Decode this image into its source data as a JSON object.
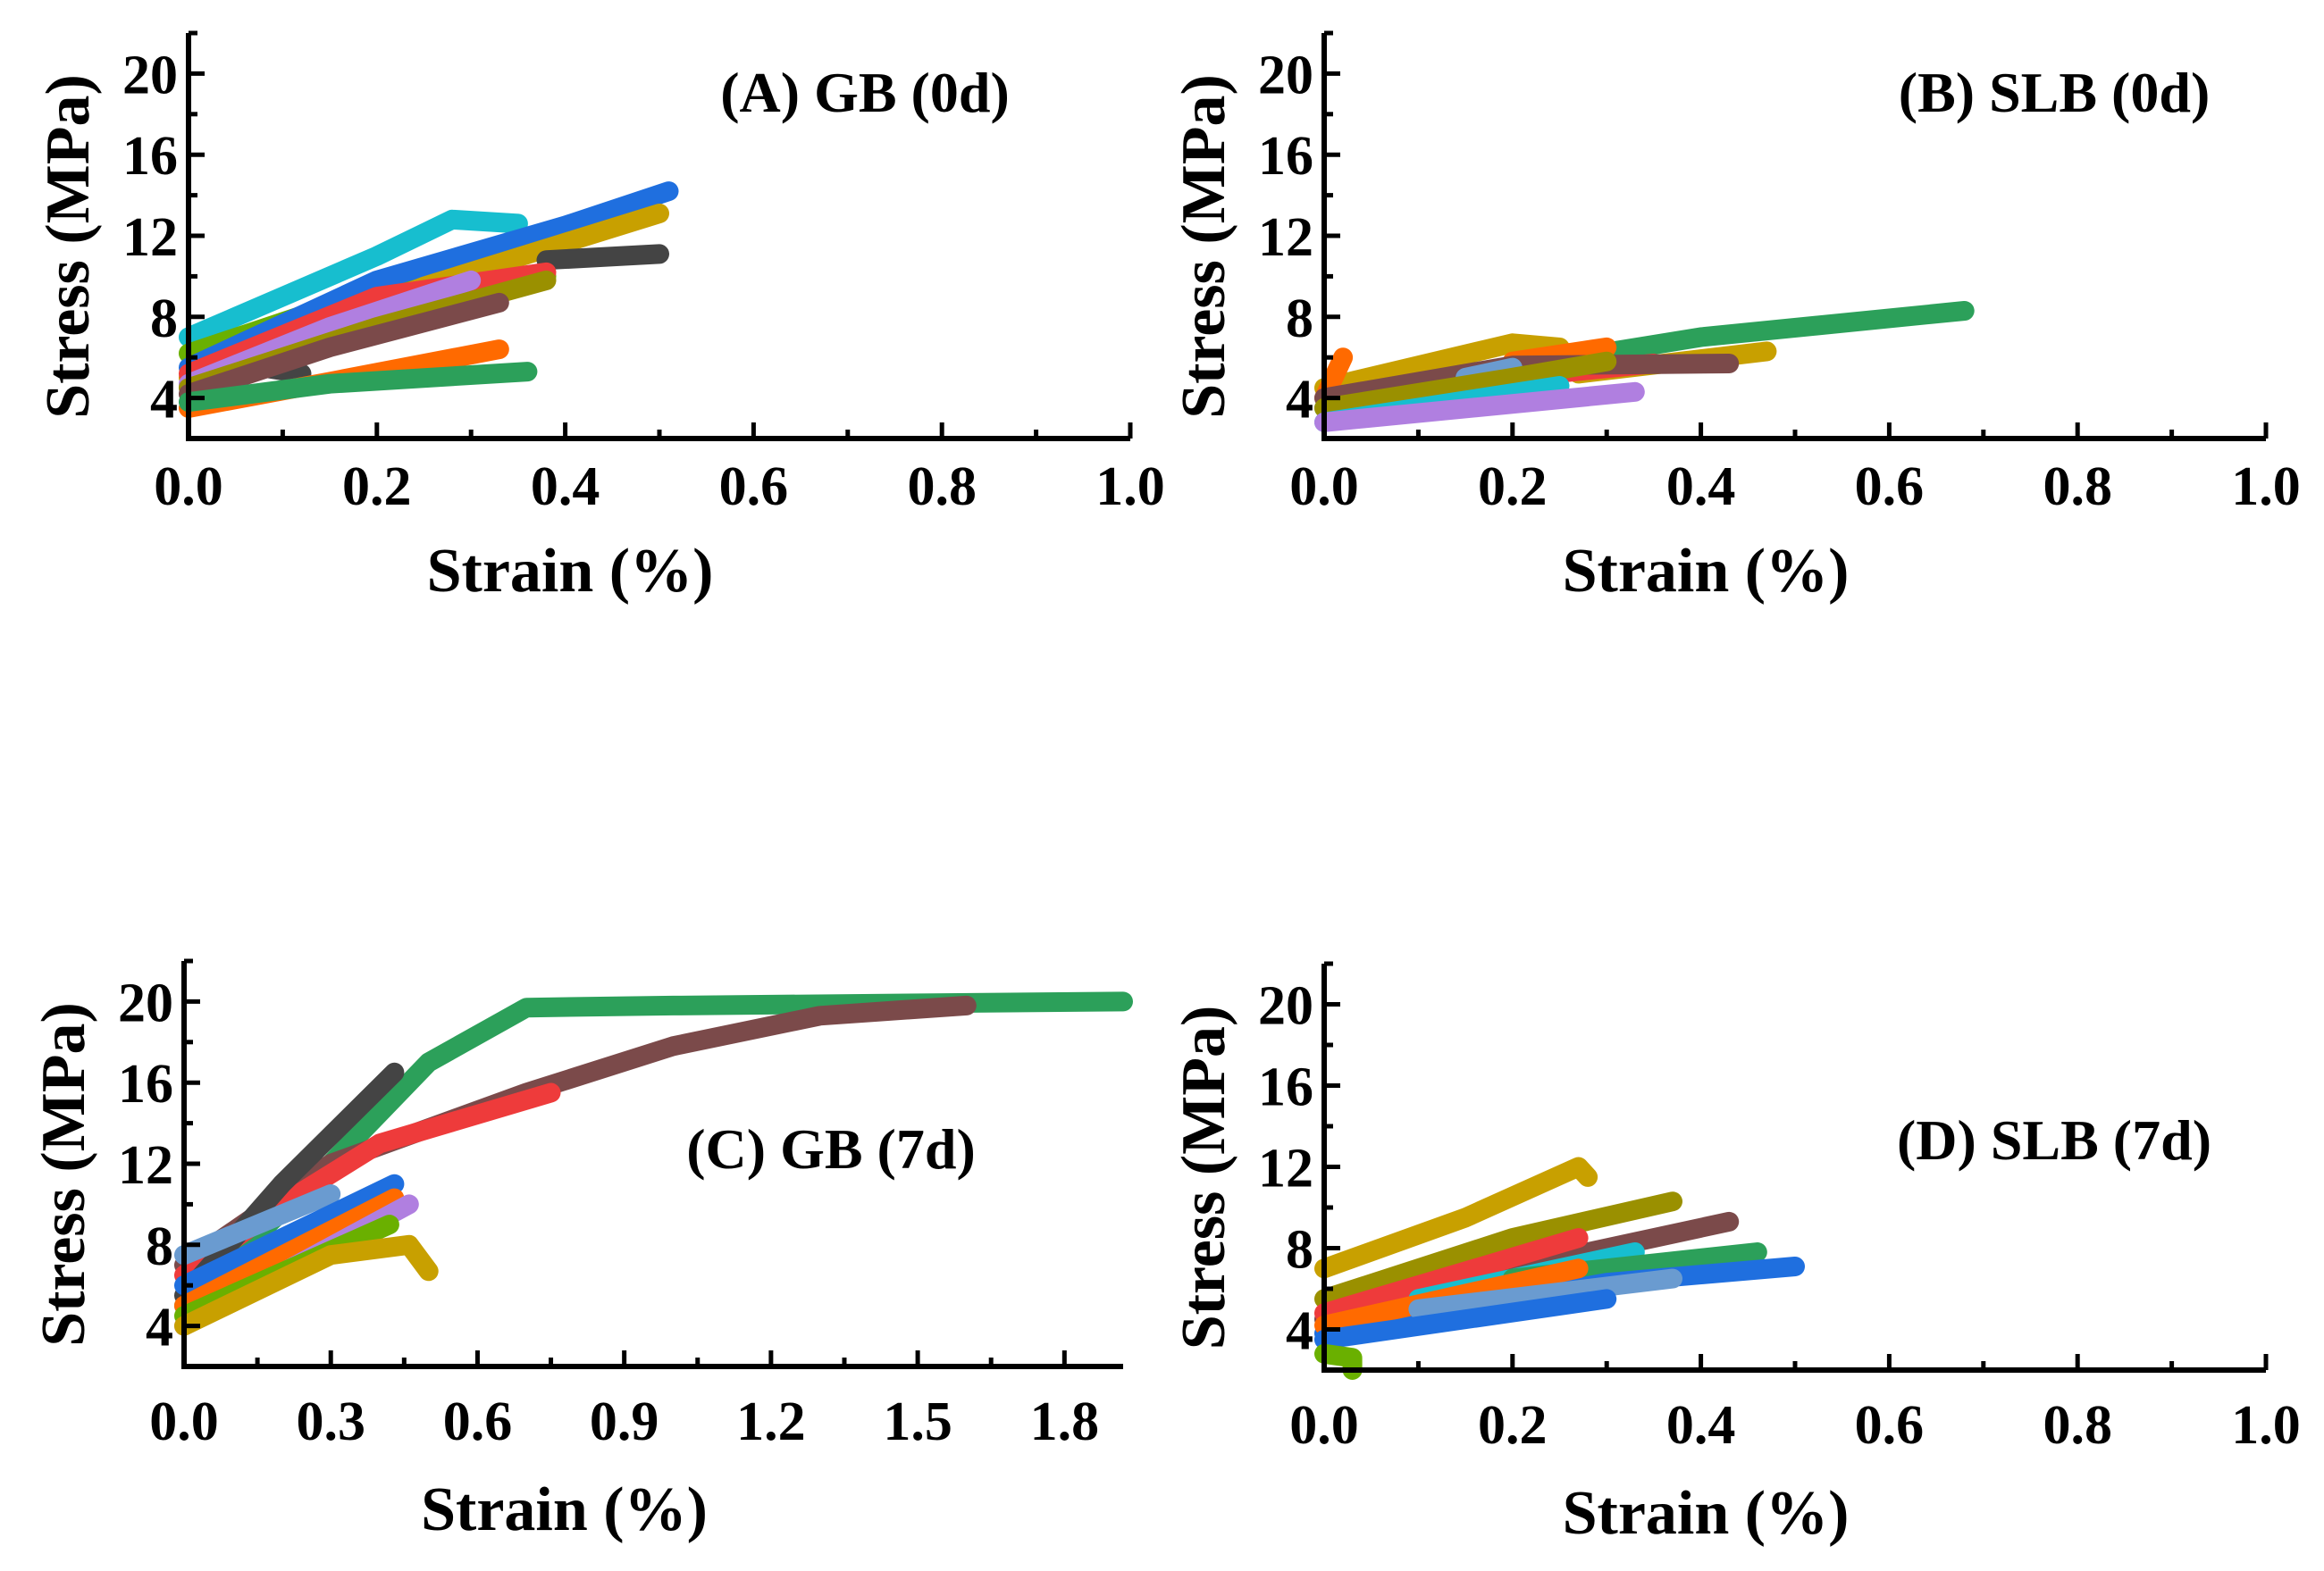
{
  "chart_data": [
    {
      "type": "line",
      "title": "(A) GB (0d)",
      "xlabel": "Strain (%)",
      "ylabel": "Stress (MPa)",
      "xlim": [
        0,
        1.0
      ],
      "ylim": [
        2,
        22
      ],
      "xticks": [
        "0.0",
        "0.2",
        "0.4",
        "0.6",
        "0.8",
        "1.0"
      ],
      "xtick_values": [
        0,
        0.2,
        0.4,
        0.6,
        0.8,
        1.0
      ],
      "yticks": [
        "4",
        "8",
        "12",
        "16",
        "20"
      ],
      "ytick_values": [
        4,
        8,
        12,
        16,
        20
      ],
      "grid": false,
      "series": [
        {
          "color": "#17becf",
          "points": [
            [
              0,
              7
            ],
            [
              0.1,
              9
            ],
            [
              0.2,
              11
            ],
            [
              0.28,
              12.8
            ],
            [
              0.35,
              12.6
            ]
          ]
        },
        {
          "color": "#6ab000",
          "points": [
            [
              0,
              6.2
            ],
            [
              0.2,
              9.3
            ],
            [
              0.38,
              10
            ]
          ]
        },
        {
          "color": "#1f6fdf",
          "points": [
            [
              0,
              5.5
            ],
            [
              0.2,
              9.8
            ],
            [
              0.4,
              12.5
            ],
            [
              0.51,
              14.2
            ]
          ]
        },
        {
          "color": "#c8a000",
          "points": [
            [
              0,
              5
            ],
            [
              0.25,
              9.5
            ],
            [
              0.5,
              13.1
            ]
          ]
        },
        {
          "color": "#444444",
          "points": [
            [
              0.38,
              10.8
            ],
            [
              0.5,
              11.1
            ]
          ]
        },
        {
          "color": "#444444",
          "points": [
            [
              0.08,
              5.5
            ],
            [
              0.12,
              5.2
            ]
          ]
        },
        {
          "color": "#ee3b3b",
          "points": [
            [
              0,
              5.2
            ],
            [
              0.2,
              9
            ],
            [
              0.38,
              10.2
            ]
          ]
        },
        {
          "color": "#b07fe0",
          "points": [
            [
              0,
              4.7
            ],
            [
              0.15,
              7.5
            ],
            [
              0.3,
              9.8
            ]
          ]
        },
        {
          "color": "#9a9000",
          "points": [
            [
              0,
              4.5
            ],
            [
              0.2,
              7.5
            ],
            [
              0.38,
              9.8
            ]
          ]
        },
        {
          "color": "#7b4a4a",
          "points": [
            [
              0,
              4.2
            ],
            [
              0.15,
              6.5
            ],
            [
              0.33,
              8.7
            ]
          ]
        },
        {
          "color": "#ff6a00",
          "points": [
            [
              0,
              3.5
            ],
            [
              0.15,
              4.8
            ],
            [
              0.33,
              6.4
            ]
          ]
        },
        {
          "color": "#2ca05a",
          "points": [
            [
              0,
              3.8
            ],
            [
              0.15,
              4.7
            ],
            [
              0.36,
              5.3
            ]
          ]
        }
      ]
    },
    {
      "type": "line",
      "title": "(B) SLB (0d)",
      "xlabel": "Strain (%)",
      "ylabel": "Stress (MPa)",
      "xlim": [
        0,
        1.0
      ],
      "ylim": [
        2,
        22
      ],
      "xticks": [
        "0.0",
        "0.2",
        "0.4",
        "0.6",
        "0.8",
        "1.0"
      ],
      "xtick_values": [
        0,
        0.2,
        0.4,
        0.6,
        0.8,
        1.0
      ],
      "yticks": [
        "4",
        "8",
        "12",
        "16",
        "20"
      ],
      "ytick_values": [
        4,
        8,
        12,
        16,
        20
      ],
      "grid": false,
      "series": [
        {
          "color": "#2ca05a",
          "points": [
            [
              0,
              3.5
            ],
            [
              0.2,
              5.5
            ],
            [
              0.4,
              7
            ],
            [
              0.68,
              8.3
            ]
          ]
        },
        {
          "color": "#c8a000",
          "points": [
            [
              0,
              4.5
            ],
            [
              0.2,
              6.7
            ],
            [
              0.25,
              6.5
            ],
            [
              0.27,
              5.2
            ],
            [
              0.47,
              6.3
            ]
          ]
        },
        {
          "color": "#ff6a00",
          "points": [
            [
              0,
              4
            ],
            [
              0.02,
              6
            ]
          ]
        },
        {
          "color": "#ff6a00",
          "points": [
            [
              0.2,
              5.8
            ],
            [
              0.3,
              6.5
            ]
          ]
        },
        {
          "color": "#ee3b3b",
          "points": [
            [
              0.2,
              5
            ],
            [
              0.35,
              5.7
            ]
          ]
        },
        {
          "color": "#7b4a4a",
          "points": [
            [
              0,
              4
            ],
            [
              0.2,
              5.6
            ],
            [
              0.43,
              5.7
            ]
          ]
        },
        {
          "color": "#6a9bd0",
          "points": [
            [
              0.15,
              5
            ],
            [
              0.2,
              5.5
            ]
          ]
        },
        {
          "color": "#9a9000",
          "points": [
            [
              0,
              3.5
            ],
            [
              0.2,
              5
            ],
            [
              0.3,
              5.8
            ]
          ]
        },
        {
          "color": "#17becf",
          "points": [
            [
              0,
              2.8
            ],
            [
              0.25,
              4.6
            ]
          ]
        },
        {
          "color": "#b07fe0",
          "points": [
            [
              0,
              2.8
            ],
            [
              0.33,
              4.3
            ]
          ]
        }
      ]
    },
    {
      "type": "line",
      "title": "(C) GB (7d)",
      "xlabel": "Strain (%)",
      "ylabel": "Stress (MPa)",
      "xlim": [
        0,
        1.92
      ],
      "ylim": [
        2,
        22
      ],
      "xticks": [
        "0.0",
        "0.3",
        "0.6",
        "0.9",
        "1.2",
        "1.5",
        "1.8"
      ],
      "xtick_values": [
        0,
        0.3,
        0.6,
        0.9,
        1.2,
        1.5,
        1.8
      ],
      "yticks": [
        "4",
        "8",
        "12",
        "16",
        "20"
      ],
      "ytick_values": [
        4,
        8,
        12,
        16,
        20
      ],
      "grid": false,
      "series": [
        {
          "color": "#2ca05a",
          "points": [
            [
              0,
              5
            ],
            [
              0.3,
              12
            ],
            [
              0.5,
              17
            ],
            [
              0.7,
              19.7
            ],
            [
              1.0,
              19.8
            ],
            [
              1.92,
              20
            ]
          ]
        },
        {
          "color": "#7b4a4a",
          "points": [
            [
              0,
              7
            ],
            [
              0.3,
              12
            ],
            [
              0.7,
              15.5
            ],
            [
              1.0,
              17.8
            ],
            [
              1.3,
              19.3
            ],
            [
              1.6,
              19.8
            ]
          ]
        },
        {
          "color": "#ee3b3b",
          "points": [
            [
              0,
              6.5
            ],
            [
              0.2,
              10
            ],
            [
              0.4,
              13
            ],
            [
              0.75,
              15.5
            ]
          ]
        },
        {
          "color": "#444444",
          "points": [
            [
              0,
              5.5
            ],
            [
              0.2,
              11
            ],
            [
              0.43,
              16.5
            ]
          ]
        },
        {
          "color": "#6a9bd0",
          "points": [
            [
              0,
              7.5
            ],
            [
              0.3,
              10.5
            ]
          ]
        },
        {
          "color": "#1f6fdf",
          "points": [
            [
              0,
              6
            ],
            [
              0.43,
              11
            ]
          ]
        },
        {
          "color": "#ff6a00",
          "points": [
            [
              0,
              5
            ],
            [
              0.43,
              10.3
            ]
          ]
        },
        {
          "color": "#b07fe0",
          "points": [
            [
              0,
              4
            ],
            [
              0.46,
              10
            ]
          ]
        },
        {
          "color": "#6ab000",
          "points": [
            [
              0,
              4.5
            ],
            [
              0.42,
              9
            ]
          ]
        },
        {
          "color": "#c8a000",
          "points": [
            [
              0,
              4
            ],
            [
              0.3,
              7.5
            ],
            [
              0.46,
              8
            ],
            [
              0.5,
              6.7
            ]
          ]
        }
      ]
    },
    {
      "type": "line",
      "title": "(D) SLB (7d)",
      "xlabel": "Strain (%)",
      "ylabel": "Stress (MPa)",
      "xlim": [
        0,
        1.0
      ],
      "ylim": [
        2,
        22
      ],
      "xticks": [
        "0.0",
        "0.2",
        "0.4",
        "0.6",
        "0.8",
        "1.0"
      ],
      "xtick_values": [
        0,
        0.2,
        0.4,
        0.6,
        0.8,
        1.0
      ],
      "yticks": [
        "4",
        "8",
        "12",
        "16",
        "20"
      ],
      "ytick_values": [
        4,
        8,
        12,
        16,
        20
      ],
      "grid": false,
      "series": [
        {
          "color": "#c8a000",
          "points": [
            [
              0,
              7
            ],
            [
              0.15,
              9.5
            ],
            [
              0.27,
              12
            ],
            [
              0.28,
              11.5
            ]
          ]
        },
        {
          "color": "#9a9000",
          "points": [
            [
              0,
              5.5
            ],
            [
              0.2,
              8.5
            ],
            [
              0.37,
              10.3
            ]
          ]
        },
        {
          "color": "#7b4a4a",
          "points": [
            [
              0,
              4.5
            ],
            [
              0.2,
              7
            ],
            [
              0.43,
              9.3
            ]
          ]
        },
        {
          "color": "#ee3b3b",
          "points": [
            [
              0,
              4.8
            ],
            [
              0.27,
              8.5
            ]
          ]
        },
        {
          "color": "#17becf",
          "points": [
            [
              0.1,
              5.5
            ],
            [
              0.33,
              7.8
            ]
          ]
        },
        {
          "color": "#2ca05a",
          "points": [
            [
              0.2,
              6.5
            ],
            [
              0.46,
              7.8
            ]
          ]
        },
        {
          "color": "#1f6fdf",
          "points": [
            [
              0,
              3.8
            ],
            [
              0.3,
              6.3
            ],
            [
              0.5,
              7.1
            ]
          ]
        },
        {
          "color": "#ff6a00",
          "points": [
            [
              0,
              4.2
            ],
            [
              0.27,
              7
            ]
          ]
        },
        {
          "color": "#6a9bd0",
          "points": [
            [
              0.1,
              5
            ],
            [
              0.37,
              6.5
            ]
          ]
        },
        {
          "color": "#1f6fdf",
          "points": [
            [
              0,
              3.5
            ],
            [
              0.3,
              5.5
            ]
          ]
        },
        {
          "color": "#6ab000",
          "points": [
            [
              0,
              2.8
            ],
            [
              0.03,
              2.6
            ],
            [
              0.03,
              2
            ]
          ]
        }
      ]
    }
  ]
}
